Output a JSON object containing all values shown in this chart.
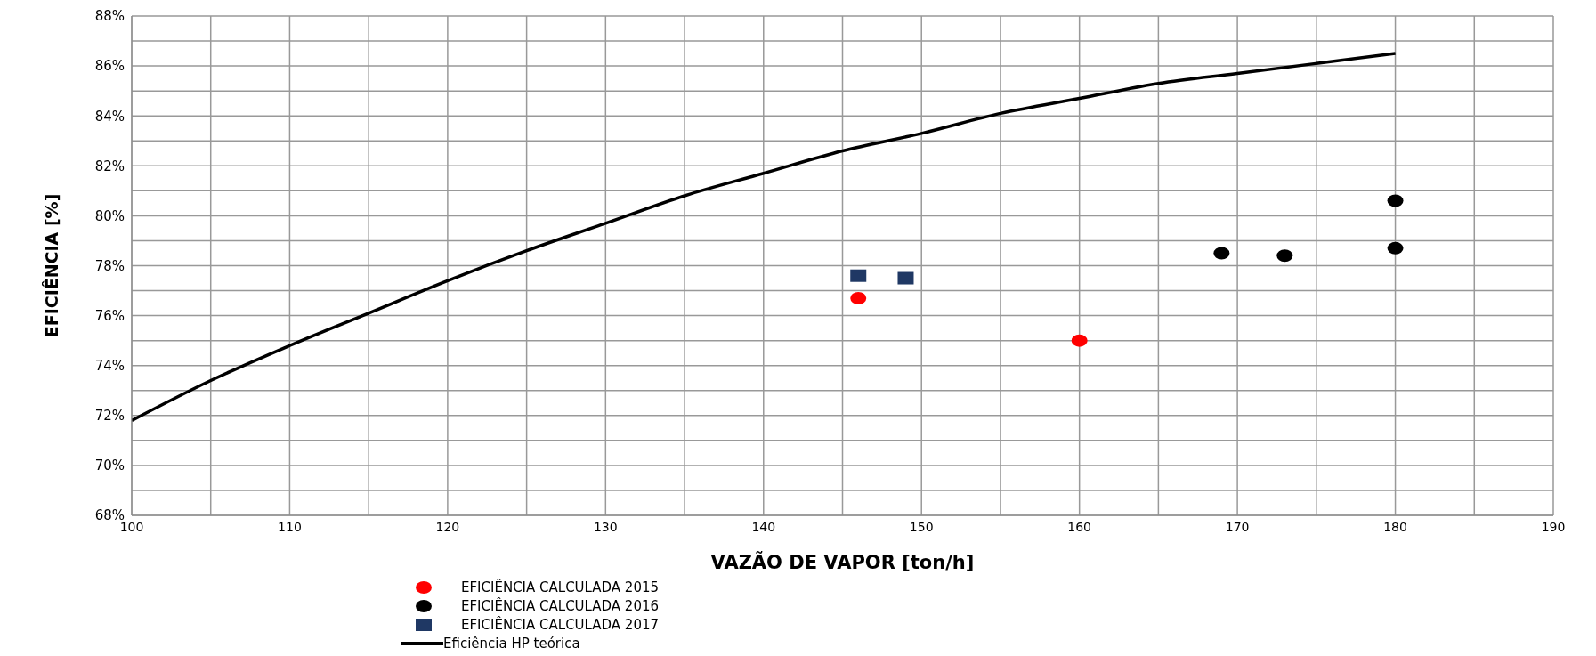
{
  "chart_data": {
    "type": "scatter",
    "xlabel": "VAZÃO DE VAPOR [ton/h]",
    "ylabel": "EFICIÊNCIA [%]",
    "xlim": [
      100,
      190
    ],
    "xticks": [
      100,
      {
        "value": 105,
        "label": null
      },
      110,
      {
        "value": 115,
        "label": null
      },
      120,
      {
        "value": 125,
        "label": null
      },
      130,
      {
        "value": 135,
        "label": null
      },
      140,
      {
        "value": 145,
        "label": null
      },
      150,
      {
        "value": 155,
        "label": null
      },
      160,
      {
        "value": 165,
        "label": null
      },
      170,
      {
        "value": 175,
        "label": null
      },
      180,
      {
        "value": 185,
        "label": null
      },
      190
    ],
    "ylim": [
      68,
      88
    ],
    "yticks": [
      {
        "value": 68,
        "label": "68%"
      },
      {
        "value": 69,
        "label": null
      },
      {
        "value": 70,
        "label": "70%"
      },
      {
        "value": 71,
        "label": null
      },
      {
        "value": 72,
        "label": "72%"
      },
      {
        "value": 73,
        "label": null
      },
      {
        "value": 74,
        "label": "74%"
      },
      {
        "value": 75,
        "label": null
      },
      {
        "value": 76,
        "label": "76%"
      },
      {
        "value": 77,
        "label": null
      },
      {
        "value": 78,
        "label": "78%"
      },
      {
        "value": 79,
        "label": null
      },
      {
        "value": 80,
        "label": "80%"
      },
      {
        "value": 81,
        "label": null
      },
      {
        "value": 82,
        "label": "82%"
      },
      {
        "value": 83,
        "label": null
      },
      {
        "value": 84,
        "label": "84%"
      },
      {
        "value": 85,
        "label": null
      },
      {
        "value": 86,
        "label": "86%"
      },
      {
        "value": 87,
        "label": null
      },
      {
        "value": 88,
        "label": "88%"
      }
    ],
    "grid": true,
    "legend": "bottom",
    "series": [
      {
        "name": "EFICIÊNCIA CALCULADA 2015",
        "marker": "circle",
        "color": "#ff0000",
        "x": [
          146,
          160
        ],
        "values": [
          76.7,
          75.0
        ]
      },
      {
        "name": "EFICIÊNCIA CALCULADA 2016",
        "marker": "circle",
        "color": "#000000",
        "x": [
          169,
          173,
          180,
          180
        ],
        "values": [
          78.5,
          78.4,
          80.6,
          78.7
        ]
      },
      {
        "name": "EFICIÊNCIA CALCULADA 2017",
        "marker": "square",
        "color": "#1f3864",
        "x": [
          146,
          149
        ],
        "values": [
          77.6,
          77.5
        ]
      },
      {
        "name": "Eficiência HP teórica",
        "type": "line",
        "marker": "none",
        "line_style": "solid",
        "color": "#000000",
        "x": [
          100,
          105,
          110,
          115,
          120,
          125,
          130,
          135,
          140,
          145,
          150,
          155,
          160,
          165,
          170,
          175,
          180
        ],
        "values": [
          71.8,
          73.4,
          74.8,
          76.1,
          77.4,
          78.6,
          79.7,
          80.8,
          81.7,
          82.6,
          83.3,
          84.1,
          84.7,
          85.3,
          85.7,
          86.1,
          86.5
        ]
      }
    ]
  }
}
